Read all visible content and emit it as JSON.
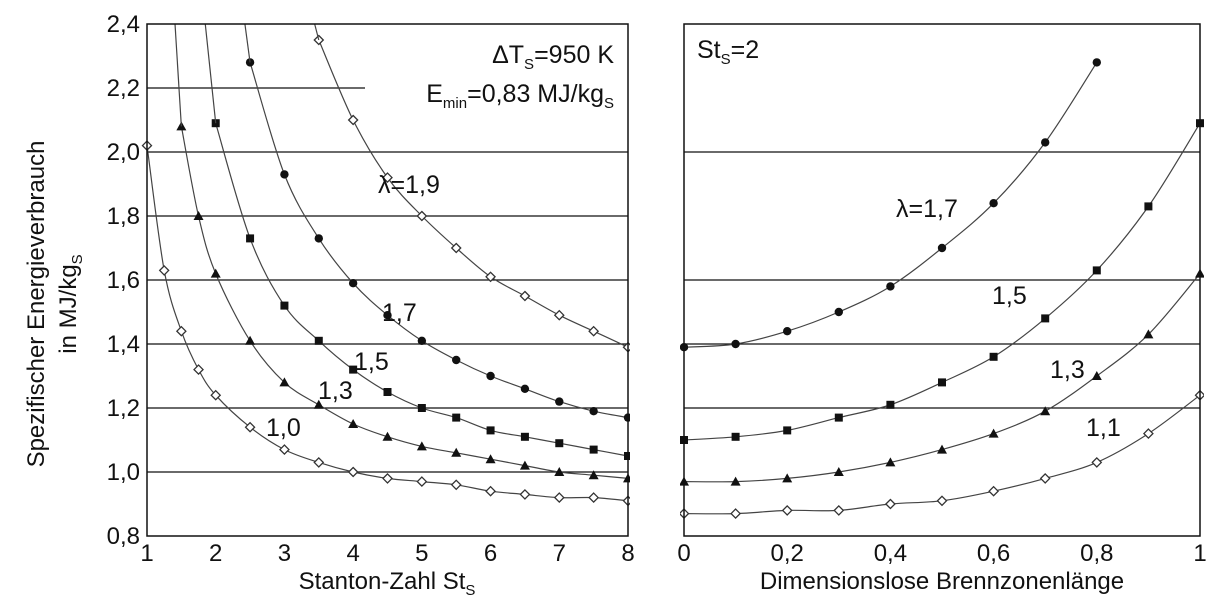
{
  "y_axis": {
    "label_line1": "Spezifischer Energieverbrauch",
    "label_line2_main": "in MJ/kg",
    "label_line2_sub": "S",
    "ticks": [
      "0,8",
      "1,0",
      "1,2",
      "1,4",
      "1,6",
      "1,8",
      "2,0",
      "2,2",
      "2,4"
    ]
  },
  "left_panel": {
    "xlabel_main": "Stanton-Zahl St",
    "xlabel_sub": "S",
    "x_ticks": [
      "1",
      "2",
      "3",
      "4",
      "5",
      "6",
      "7",
      "8"
    ],
    "annotation_dt_main": "ΔT",
    "annotation_dt_sub": "S",
    "annotation_dt_value": "=950 K",
    "annotation_e_main": "E",
    "annotation_e_sub": "min",
    "annotation_e_value": "=0,83 MJ/kg",
    "annotation_e_sub2": "S",
    "curve_labels": [
      "λ=1,9",
      "1,7",
      "1,5",
      "1,3",
      "1,0"
    ]
  },
  "right_panel": {
    "xlabel": "Dimensionslose Brennzonenlänge",
    "x_ticks": [
      "0",
      "0,2",
      "0,4",
      "0,6",
      "0,8",
      "1"
    ],
    "annotation_main": "St",
    "annotation_sub": "S",
    "annotation_value": "=2",
    "curve_labels": [
      "λ=1,7",
      "1,5",
      "1,3",
      "1,1"
    ]
  },
  "chart_data": [
    {
      "type": "line",
      "title": "",
      "xlabel": "Stanton-Zahl St_S",
      "ylabel": "Spezifischer Energieverbrauch in MJ/kg_S",
      "xlim": [
        1,
        8
      ],
      "ylim": [
        0.8,
        2.4
      ],
      "grid": "horizontal lines at 1.0, 1.2, 1.4, 1.6, 1.8, 2.0, 2.2",
      "series": [
        {
          "name": "λ=1,9",
          "marker": "diamond-open",
          "x": [
            3.5,
            4,
            4.5,
            5,
            5.5,
            6,
            6.5,
            7,
            7.5,
            8
          ],
          "y": [
            2.35,
            2.1,
            1.92,
            1.8,
            1.7,
            1.61,
            1.55,
            1.49,
            1.44,
            1.39
          ]
        },
        {
          "name": "1,7",
          "marker": "circle-filled",
          "x": [
            2.5,
            3,
            3.5,
            4,
            4.5,
            5,
            5.5,
            6,
            6.5,
            7,
            7.5,
            8
          ],
          "y": [
            2.28,
            1.93,
            1.73,
            1.59,
            1.49,
            1.41,
            1.35,
            1.3,
            1.26,
            1.22,
            1.19,
            1.17
          ]
        },
        {
          "name": "1,5",
          "marker": "square-filled",
          "x": [
            2,
            2.5,
            3,
            3.5,
            4,
            4.5,
            5,
            5.5,
            6,
            6.5,
            7,
            7.5,
            8
          ],
          "y": [
            2.09,
            1.73,
            1.52,
            1.41,
            1.32,
            1.25,
            1.2,
            1.17,
            1.13,
            1.11,
            1.09,
            1.07,
            1.05
          ]
        },
        {
          "name": "1,3",
          "marker": "triangle-filled",
          "x": [
            1.5,
            1.75,
            2,
            2.5,
            3,
            3.5,
            4,
            4.5,
            5,
            5.5,
            6,
            6.5,
            7,
            7.5,
            8
          ],
          "y": [
            2.08,
            1.8,
            1.62,
            1.41,
            1.28,
            1.21,
            1.15,
            1.11,
            1.08,
            1.06,
            1.04,
            1.02,
            1.0,
            0.99,
            0.98
          ]
        },
        {
          "name": "1,0",
          "marker": "diamond-open",
          "x": [
            1,
            1.25,
            1.5,
            1.75,
            2,
            2.5,
            3,
            3.5,
            4,
            4.5,
            5,
            5.5,
            6,
            6.5,
            7,
            7.5,
            8
          ],
          "y": [
            2.02,
            1.63,
            1.44,
            1.32,
            1.24,
            1.14,
            1.07,
            1.03,
            1.0,
            0.98,
            0.97,
            0.96,
            0.94,
            0.93,
            0.92,
            0.92,
            0.91
          ]
        }
      ]
    },
    {
      "type": "line",
      "title": "",
      "xlabel": "Dimensionslose Brennzonenlänge",
      "ylabel": "",
      "xlim": [
        0,
        1
      ],
      "ylim": [
        0.8,
        2.4
      ],
      "grid": "horizontal lines at 1.2, 1.4, 1.6, 2.0",
      "series": [
        {
          "name": "λ=1,7",
          "marker": "circle-filled",
          "x": [
            0,
            0.1,
            0.2,
            0.3,
            0.4,
            0.5,
            0.6,
            0.7,
            0.8
          ],
          "y": [
            1.39,
            1.4,
            1.44,
            1.5,
            1.58,
            1.7,
            1.84,
            2.03,
            2.28
          ]
        },
        {
          "name": "1,5",
          "marker": "square-filled",
          "x": [
            0,
            0.1,
            0.2,
            0.3,
            0.4,
            0.5,
            0.6,
            0.7,
            0.8,
            0.9,
            1.0
          ],
          "y": [
            1.1,
            1.11,
            1.13,
            1.17,
            1.21,
            1.28,
            1.36,
            1.48,
            1.63,
            1.83,
            2.09
          ]
        },
        {
          "name": "1,3",
          "marker": "triangle-filled",
          "x": [
            0,
            0.1,
            0.2,
            0.3,
            0.4,
            0.5,
            0.6,
            0.7,
            0.8,
            0.9,
            1.0
          ],
          "y": [
            0.97,
            0.97,
            0.98,
            1.0,
            1.03,
            1.07,
            1.12,
            1.19,
            1.3,
            1.43,
            1.62
          ]
        },
        {
          "name": "1,1",
          "marker": "diamond-open",
          "x": [
            0,
            0.1,
            0.2,
            0.3,
            0.4,
            0.5,
            0.6,
            0.7,
            0.8,
            0.9,
            1.0
          ],
          "y": [
            0.87,
            0.87,
            0.88,
            0.88,
            0.9,
            0.91,
            0.94,
            0.98,
            1.03,
            1.12,
            1.24
          ]
        }
      ]
    }
  ]
}
